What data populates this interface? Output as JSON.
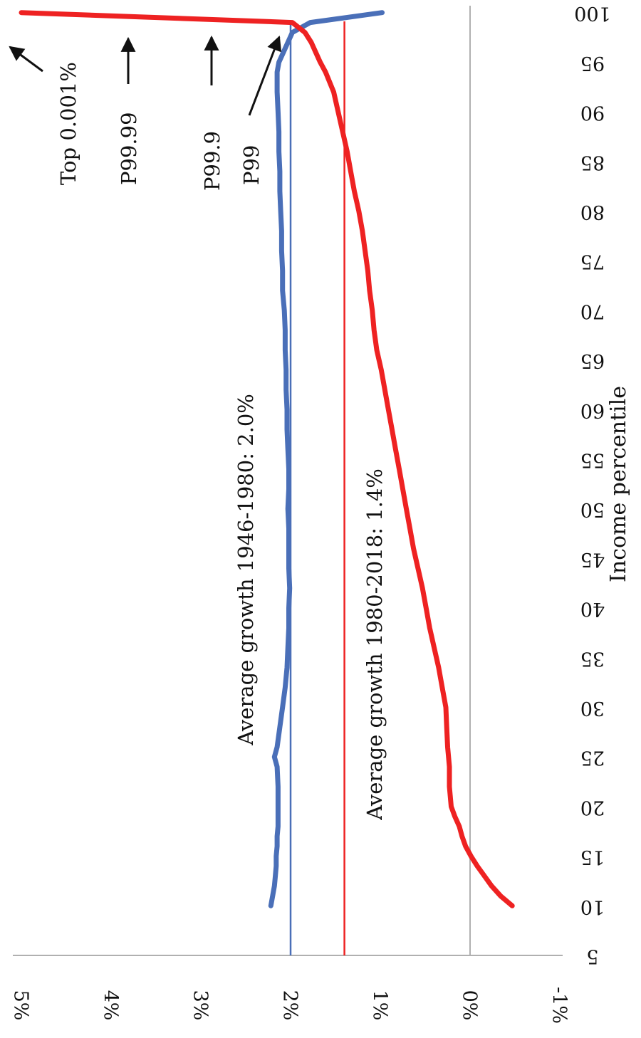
{
  "chart_data": {
    "type": "line",
    "orientation": "rotated-90-clockwise",
    "xlabel": "Income percentile",
    "ylabel": "",
    "x_ticks": [
      5,
      10,
      15,
      20,
      25,
      30,
      35,
      40,
      45,
      50,
      55,
      60,
      65,
      70,
      75,
      80,
      85,
      90,
      95,
      100
    ],
    "y_ticks": [
      -1,
      0,
      1,
      2,
      3,
      4,
      5
    ],
    "y_tick_labels": [
      "-1%",
      "0%",
      "1%",
      "2%",
      "3%",
      "4%",
      "5%"
    ],
    "xlim": [
      5,
      100
    ],
    "ylim": [
      -1,
      5
    ],
    "grid": false,
    "series": [
      {
        "color": "#4a6fb8",
        "x": [
          10,
          11,
          12,
          13,
          14,
          15,
          16,
          17,
          18,
          20,
          22,
          24,
          25,
          26,
          28,
          30,
          32,
          34,
          36,
          38,
          40,
          42,
          44,
          46,
          48,
          50,
          52,
          54,
          56,
          58,
          60,
          62,
          64,
          66,
          68,
          70,
          72,
          74,
          76,
          78,
          80,
          82,
          84,
          86,
          88,
          90,
          92,
          94,
          95,
          96,
          97,
          98,
          99,
          100
        ],
        "y": [
          2.22,
          2.2,
          2.18,
          2.17,
          2.16,
          2.16,
          2.15,
          2.15,
          2.14,
          2.14,
          2.14,
          2.15,
          2.18,
          2.15,
          2.12,
          2.09,
          2.06,
          2.04,
          2.03,
          2.02,
          2.02,
          2.01,
          2.02,
          2.02,
          2.02,
          2.03,
          2.02,
          2.02,
          2.03,
          2.04,
          2.04,
          2.05,
          2.05,
          2.06,
          2.06,
          2.07,
          2.09,
          2.09,
          2.1,
          2.1,
          2.11,
          2.12,
          2.12,
          2.13,
          2.13,
          2.14,
          2.15,
          2.15,
          2.13,
          2.08,
          2.03,
          1.98,
          1.78,
          0.98
        ]
      },
      {
        "color": "#ee2222",
        "x": [
          10,
          11,
          12,
          13,
          14,
          15,
          16,
          17,
          18,
          19,
          20,
          22,
          24,
          26,
          28,
          30,
          32,
          34,
          36,
          38,
          40,
          42,
          44,
          46,
          48,
          50,
          52,
          54,
          56,
          58,
          60,
          62,
          64,
          66,
          68,
          70,
          72,
          74,
          76,
          78,
          80,
          82,
          84,
          86,
          88,
          90,
          92,
          94,
          95,
          96,
          97,
          98,
          99,
          100
        ],
        "y": [
          -0.47,
          -0.34,
          -0.24,
          -0.16,
          -0.08,
          -0.01,
          0.05,
          0.09,
          0.12,
          0.17,
          0.21,
          0.23,
          0.23,
          0.25,
          0.26,
          0.27,
          0.31,
          0.35,
          0.4,
          0.45,
          0.49,
          0.53,
          0.58,
          0.63,
          0.67,
          0.71,
          0.75,
          0.79,
          0.83,
          0.87,
          0.91,
          0.95,
          0.99,
          1.04,
          1.07,
          1.09,
          1.12,
          1.14,
          1.17,
          1.2,
          1.24,
          1.29,
          1.33,
          1.37,
          1.42,
          1.47,
          1.52,
          1.61,
          1.67,
          1.72,
          1.77,
          1.84,
          1.98,
          5.0
        ]
      }
    ],
    "reference_lines": [
      {
        "value": 2.0,
        "color": "#4a6fb8",
        "label": "Average growth 1946-1980: 2.0%"
      },
      {
        "value": 1.4,
        "color": "#ee2222",
        "label": "Average growth 1980-2018: 1.4%"
      }
    ],
    "annotations": [
      {
        "text": "Top 0.001%"
      },
      {
        "text": "P99.99"
      },
      {
        "text": "P99.9"
      },
      {
        "text": "P99"
      }
    ]
  }
}
